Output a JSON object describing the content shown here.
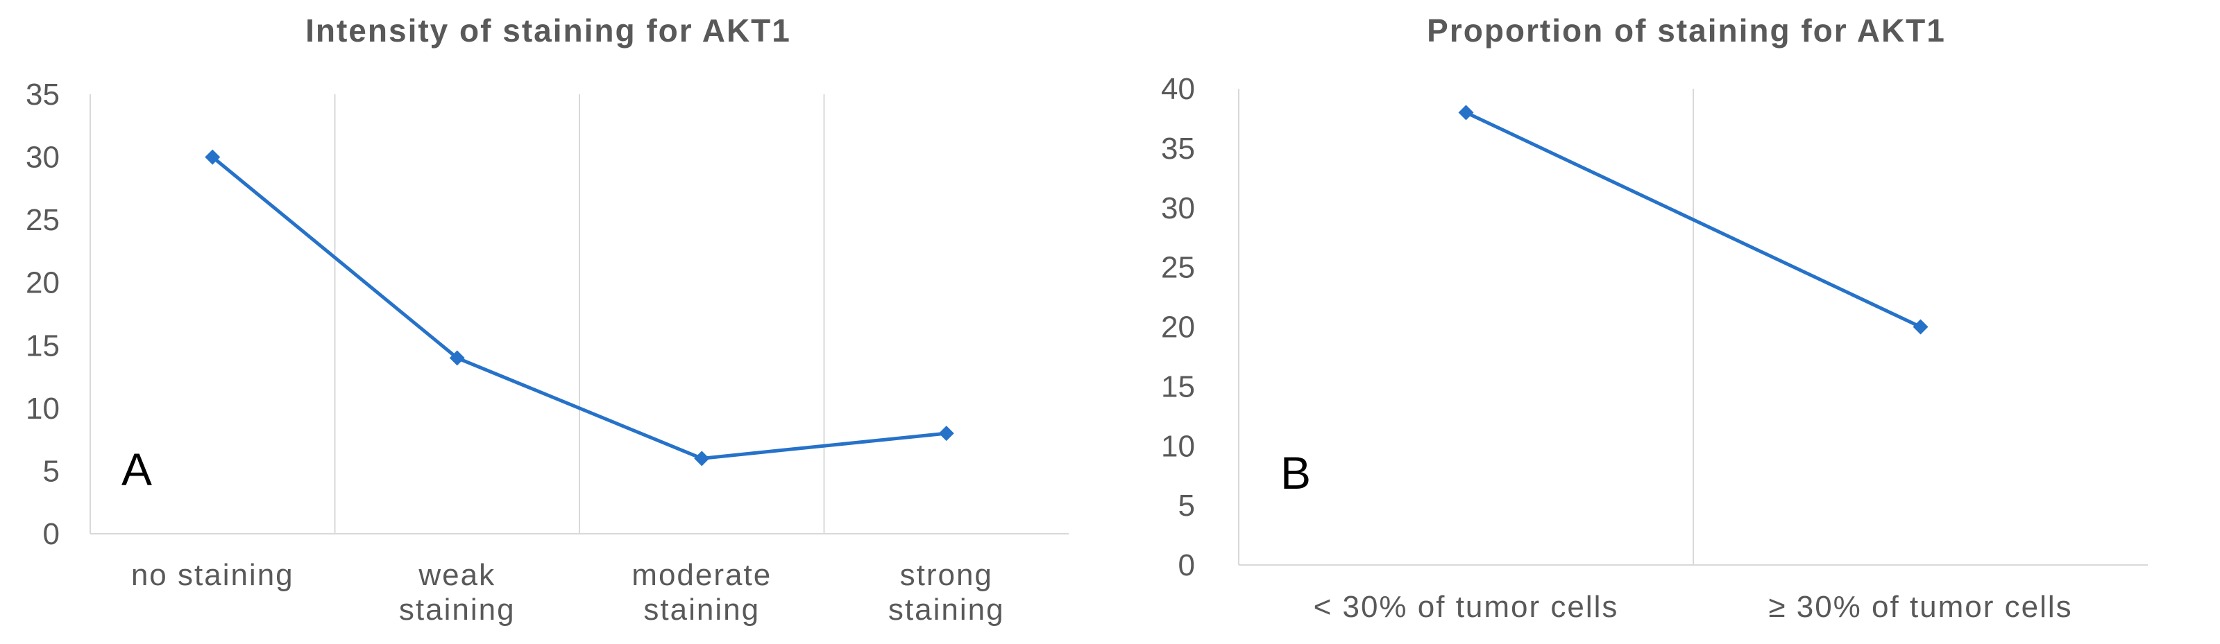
{
  "colors": {
    "series": "#2672c9",
    "grid": "#d9d9d9",
    "text": "#595959"
  },
  "chart_data": [
    {
      "type": "line",
      "panel_letter": "A",
      "title": "Intensity of staining for AKT1",
      "categories": [
        [
          "no  staining"
        ],
        [
          "weak",
          "staining"
        ],
        [
          "moderate",
          "staining"
        ],
        [
          "strong",
          "staining"
        ]
      ],
      "values": [
        30,
        14,
        6,
        8
      ],
      "ylim": [
        0,
        35
      ],
      "yticks": [
        0,
        5,
        10,
        15,
        20,
        25,
        30,
        35
      ],
      "grid": "vertical category separators",
      "xlabel": "",
      "ylabel": ""
    },
    {
      "type": "line",
      "panel_letter": "B",
      "title": "Proportion of staining for AKT1",
      "categories": [
        [
          "< 30% of tumor cells"
        ],
        [
          "≥ 30% of tumor cells"
        ]
      ],
      "values": [
        38,
        20
      ],
      "ylim": [
        0,
        40
      ],
      "yticks": [
        0,
        5,
        10,
        15,
        20,
        25,
        30,
        35,
        40
      ],
      "grid": "vertical category separators",
      "xlabel": "",
      "ylabel": ""
    }
  ]
}
